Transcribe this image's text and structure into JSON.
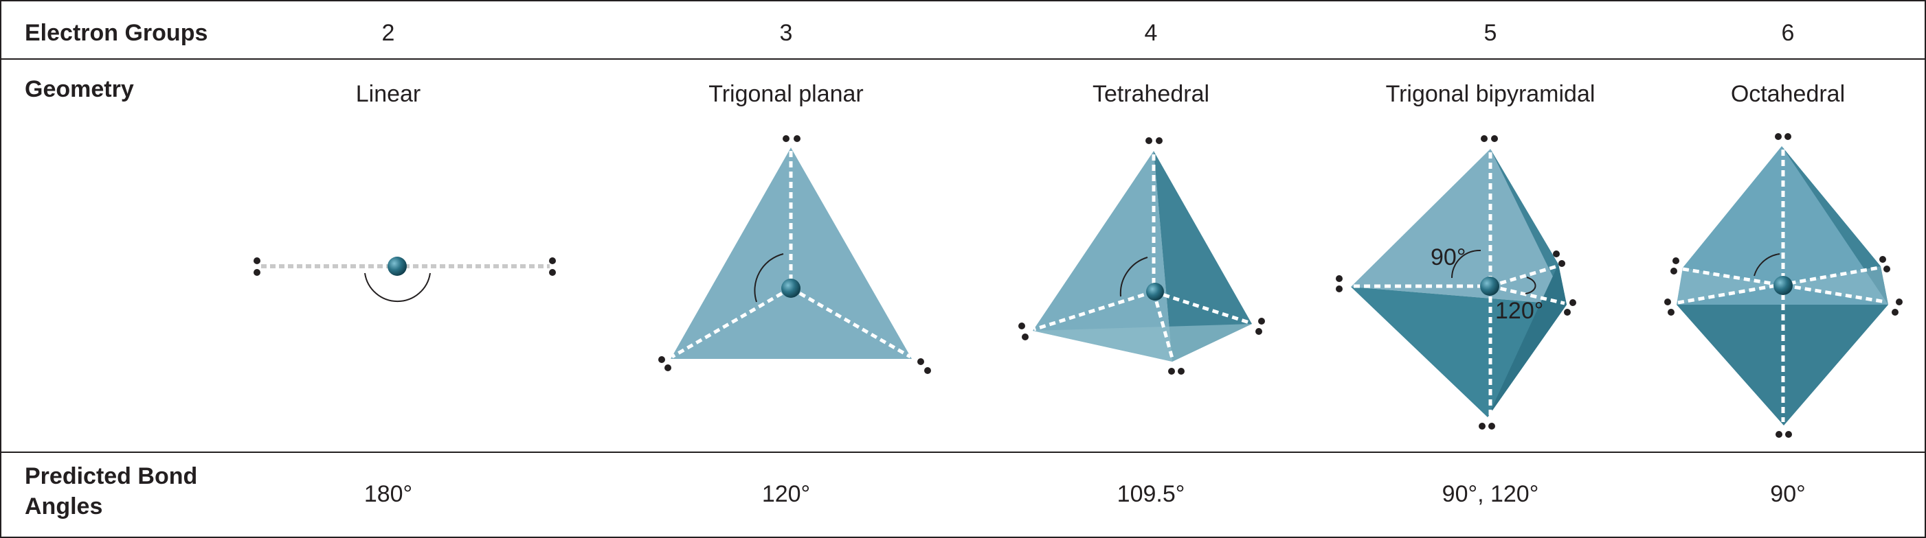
{
  "rows": {
    "electron_groups_label": "Electron Groups",
    "geometry_label": "Geometry",
    "bond_angles_label": "Predicted Bond Angles"
  },
  "columns": [
    {
      "groups": "2",
      "geometry": "Linear",
      "angles": "180°"
    },
    {
      "groups": "3",
      "geometry": "Trigonal planar",
      "angles": "120°"
    },
    {
      "groups": "4",
      "geometry": "Tetrahedral",
      "angles": "109.5°"
    },
    {
      "groups": "5",
      "geometry": "Trigonal bipyramidal",
      "angles": "90°, 120°",
      "annotations": [
        "90°",
        "120°"
      ]
    },
    {
      "groups": "6",
      "geometry": "Octahedral",
      "angles": "90°"
    }
  ],
  "colors": {
    "face_light": "#7fb0c2",
    "face_mid": "#5e9bb0",
    "face_dark": "#3f8397",
    "atom": "#1f5f72",
    "text": "#231f20"
  }
}
